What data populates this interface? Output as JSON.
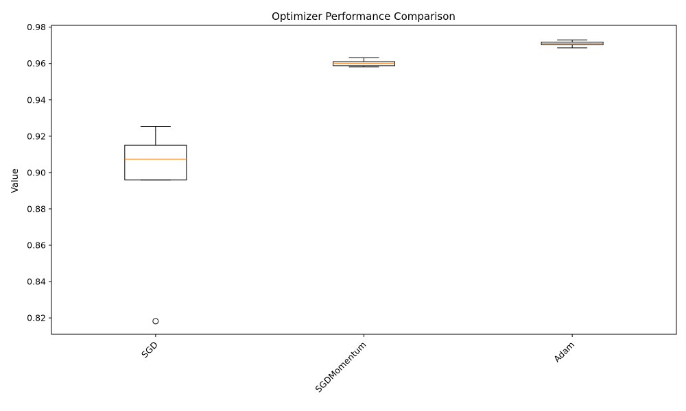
{
  "chart_data": {
    "type": "box",
    "title": "Optimizer Performance Comparison",
    "xlabel": "",
    "ylabel": "Value",
    "ylim": [
      0.811,
      0.981
    ],
    "yticks": [
      0.82,
      0.84,
      0.86,
      0.88,
      0.9,
      0.92,
      0.94,
      0.96,
      0.98
    ],
    "ytick_labels": [
      "0.82",
      "0.84",
      "0.86",
      "0.88",
      "0.90",
      "0.92",
      "0.94",
      "0.96",
      "0.98"
    ],
    "categories": [
      "SGD",
      "SGDMomentum",
      "Adam"
    ],
    "boxes": [
      {
        "category": "SGD",
        "whisker_low": 0.8959,
        "q1": 0.8959,
        "median": 0.9074,
        "q3": 0.915,
        "whisker_high": 0.9254,
        "outliers": [
          0.8182
        ]
      },
      {
        "category": "SGDMomentum",
        "whisker_low": 0.9581,
        "q1": 0.9588,
        "median": 0.96,
        "q3": 0.961,
        "whisker_high": 0.9632,
        "outliers": []
      },
      {
        "category": "Adam",
        "whisker_low": 0.9686,
        "q1": 0.9703,
        "median": 0.9709,
        "q3": 0.9718,
        "whisker_high": 0.973,
        "outliers": []
      }
    ],
    "grid": false,
    "colors": {
      "box": "#000000",
      "median": "#ff7f0e",
      "whisker": "#000000"
    }
  }
}
